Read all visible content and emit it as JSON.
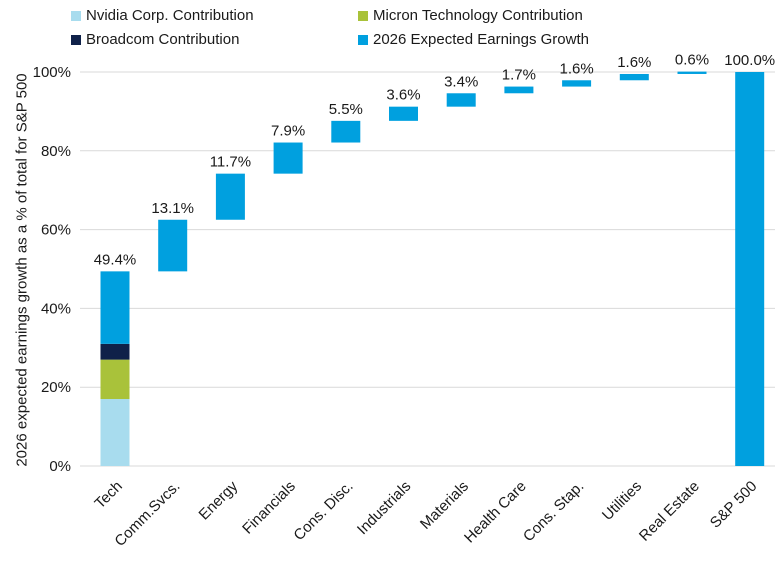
{
  "chart_data": {
    "type": "bar",
    "subtype": "waterfall",
    "ylabel": "2026 expected earnings growth as a % of total for S&P 500",
    "ylim": [
      0,
      100
    ],
    "yticks": [
      "0%",
      "20%",
      "40%",
      "60%",
      "80%",
      "100%"
    ],
    "grid": true,
    "legend_position": "top-left",
    "legend": [
      {
        "key": "nvidia",
        "label": "Nvidia Corp. Contribution",
        "color": "#a8dcee"
      },
      {
        "key": "micron",
        "label": "Micron Technology Contribution",
        "color": "#a9c23a"
      },
      {
        "key": "broadcom",
        "label": "Broadcom Contribution",
        "color": "#0f2149"
      },
      {
        "key": "total",
        "label": "2026 Expected Earnings Growth",
        "color": "#00a0df"
      }
    ],
    "categories": [
      "Tech",
      "Comm.Svcs.",
      "Energy",
      "Financials",
      "Cons. Disc.",
      "Industrials",
      "Materials",
      "Health Care",
      "Cons. Stap.",
      "Utilities",
      "Real Estate",
      "S&P 500"
    ],
    "values": [
      49.4,
      13.1,
      11.7,
      7.9,
      5.5,
      3.6,
      3.4,
      1.7,
      1.6,
      1.6,
      0.6,
      100.0
    ],
    "data_labels": [
      "49.4%",
      "13.1%",
      "11.7%",
      "7.9%",
      "5.5%",
      "3.6%",
      "3.4%",
      "1.7%",
      "1.6%",
      "1.6%",
      "0.6%",
      "100.0%"
    ],
    "tech_breakdown": {
      "nvidia": 17.0,
      "micron": 10.0,
      "broadcom": 4.0,
      "rest": 18.4
    },
    "cumulative_last": true
  }
}
